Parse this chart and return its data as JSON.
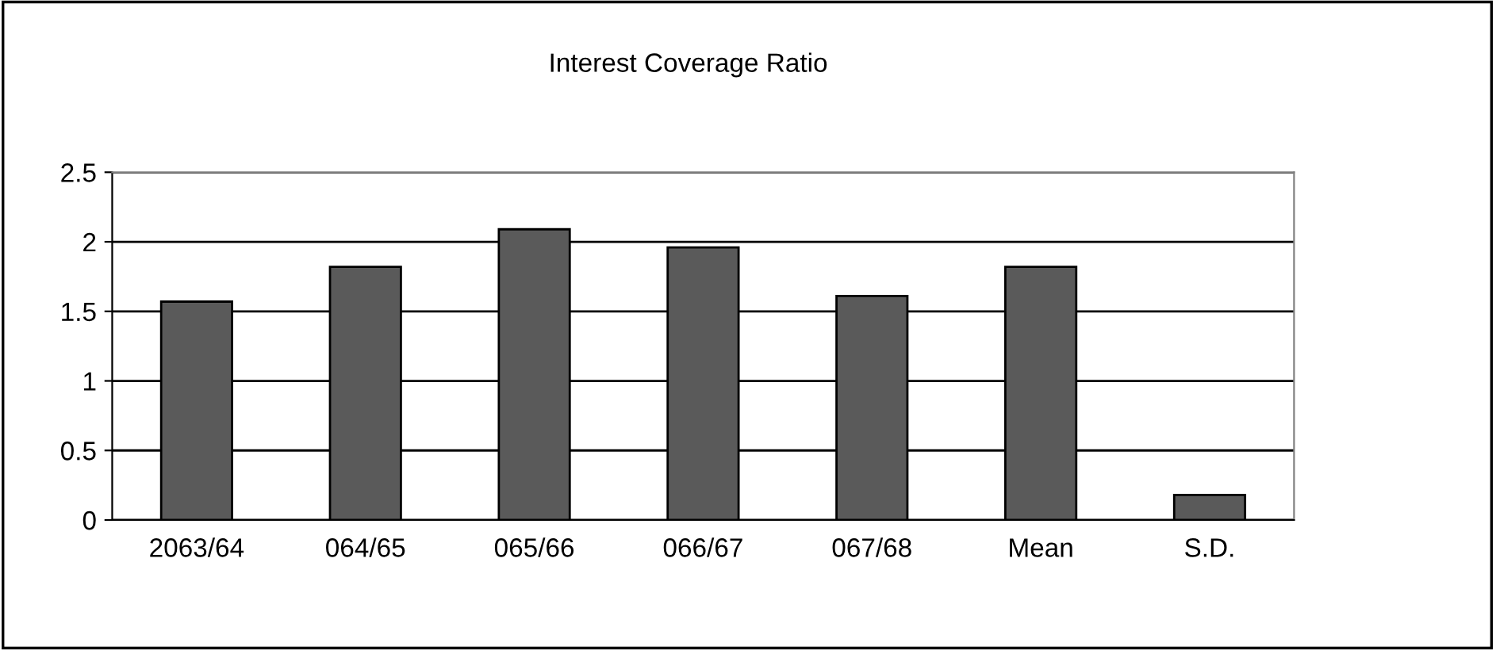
{
  "chart_data": {
    "type": "bar",
    "title": "Interest Coverage Ratio",
    "categories": [
      "2063/64",
      "064/65",
      "065/66",
      "066/67",
      "067/68",
      "Mean",
      "S.D."
    ],
    "values": [
      1.57,
      1.82,
      2.09,
      1.96,
      1.61,
      1.82,
      0.18
    ],
    "color": "#5a5a5a",
    "ylim": [
      0,
      2.5
    ],
    "yticks": [
      0,
      0.5,
      1,
      1.5,
      2,
      2.5
    ],
    "grid": "y"
  }
}
